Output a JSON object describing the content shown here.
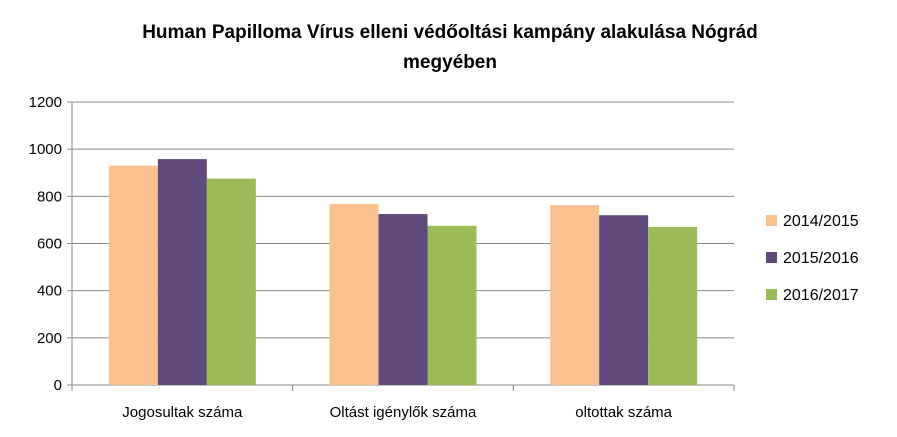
{
  "chart_data": {
    "type": "bar",
    "title_lines": [
      "Human Papilloma Vírus elleni védőoltási kampány alakulása Nógrád",
      "megyében"
    ],
    "categories": [
      "Jogosultak száma",
      "Oltást igénylők száma",
      "oltottak száma"
    ],
    "series": [
      {
        "name": "2014/2015",
        "color": "#FAC090",
        "values": [
          930,
          768,
          763
        ]
      },
      {
        "name": "2015/2016",
        "color": "#604A7B",
        "values": [
          958,
          725,
          720
        ]
      },
      {
        "name": "2016/2017",
        "color": "#9BBB59",
        "values": [
          875,
          675,
          670
        ]
      }
    ],
    "ylim": [
      0,
      1200
    ],
    "yticks": [
      "0",
      "200",
      "400",
      "600",
      "800",
      "1000",
      "1200"
    ],
    "grid": true,
    "legend_position": "right"
  }
}
